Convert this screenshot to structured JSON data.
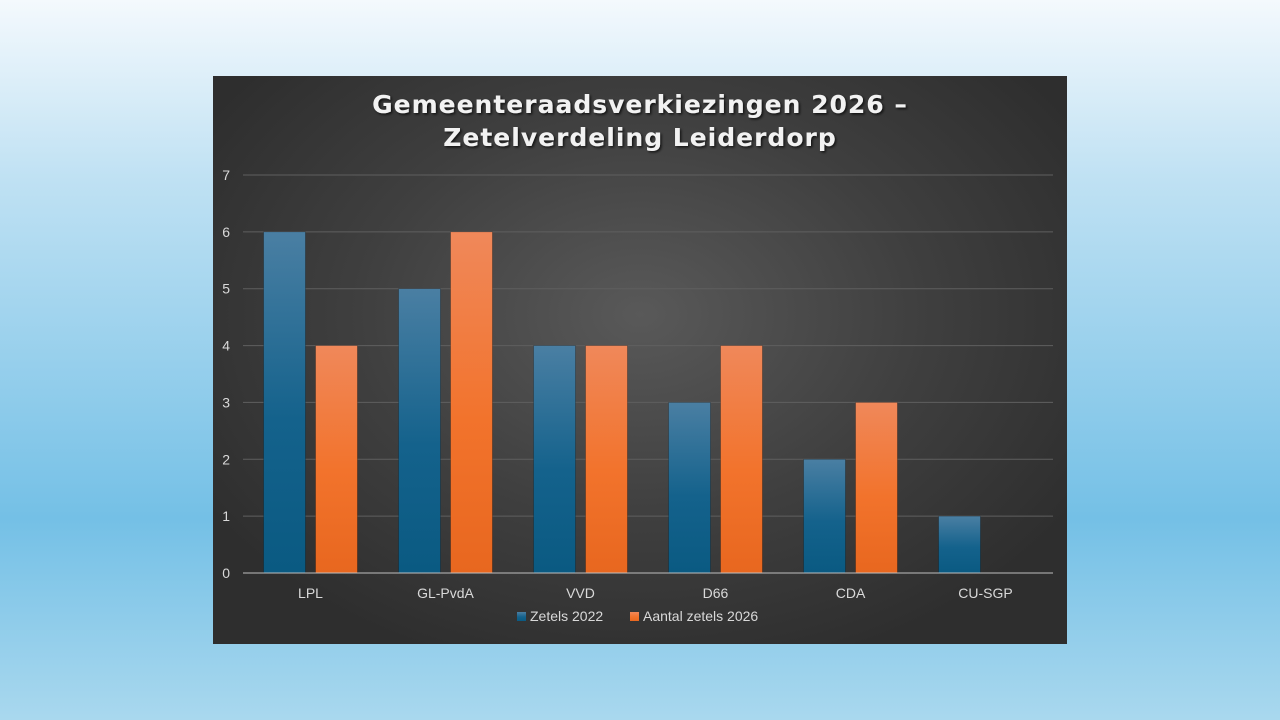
{
  "chart_data": {
    "type": "bar",
    "title_lines": [
      "Gemeenteraadsverkiezingen 2026 –",
      "Zetelverdeling Leiderdorp"
    ],
    "categories": [
      "LPL",
      "GL-PvdA",
      "VVD",
      "D66",
      "CDA",
      "CU-SGP"
    ],
    "series": [
      {
        "name": "Zetels 2022",
        "values": [
          6,
          5,
          4,
          3,
          2,
          1
        ],
        "color": "#1c5f86"
      },
      {
        "name": "Aantal zetels 2026",
        "values": [
          4,
          6,
          4,
          4,
          3,
          0
        ],
        "color": "#f0742c"
      }
    ],
    "ylim": [
      0,
      7
    ],
    "yticks": [
      0,
      1,
      2,
      3,
      4,
      5,
      6,
      7
    ],
    "grid": true,
    "legend_position": "bottom",
    "xlabel": "",
    "ylabel": ""
  }
}
